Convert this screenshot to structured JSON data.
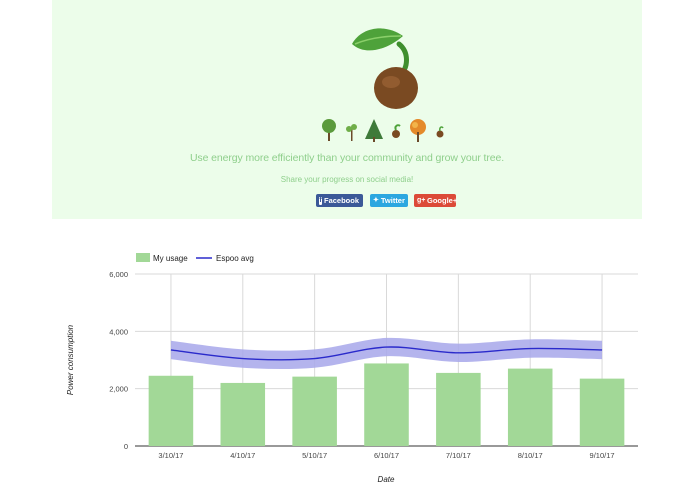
{
  "hero": {
    "tagline": "Use energy more efficiently than your community and grow your tree.",
    "share_text": "Share your progress on social media!",
    "buttons": {
      "facebook": "Facebook",
      "twitter": "Twitter",
      "googleplus": "Google+"
    },
    "colors": {
      "background": "#ecfdea",
      "text": "#8fcf8c",
      "facebook": "#3b5998",
      "twitter": "#2ca7e0",
      "googleplus": "#dc4a38"
    },
    "icons": [
      "seedling-logo",
      "tree-growth-stages"
    ]
  },
  "chart_data": {
    "type": "bar",
    "categories": [
      "3/10/17",
      "4/10/17",
      "5/10/17",
      "6/10/17",
      "7/10/17",
      "8/10/17",
      "9/10/17"
    ],
    "series": [
      {
        "name": "My usage",
        "type": "bar",
        "color": "#a2d897",
        "values": [
          2450,
          2200,
          2420,
          2880,
          2550,
          2700,
          2350
        ]
      },
      {
        "name": "Espoo avg",
        "type": "line",
        "color": "#2a2acb",
        "band_color": "#a7a7ea",
        "values": [
          3350,
          3050,
          3050,
          3450,
          3250,
          3400,
          3350
        ],
        "band": 320
      }
    ],
    "xlabel": "Date",
    "ylabel": "Power consumption",
    "yticks": [
      "0",
      "2,000",
      "4,000",
      "6,000"
    ],
    "ylim": [
      0,
      6000
    ],
    "grid": true,
    "legend": "top-left"
  }
}
